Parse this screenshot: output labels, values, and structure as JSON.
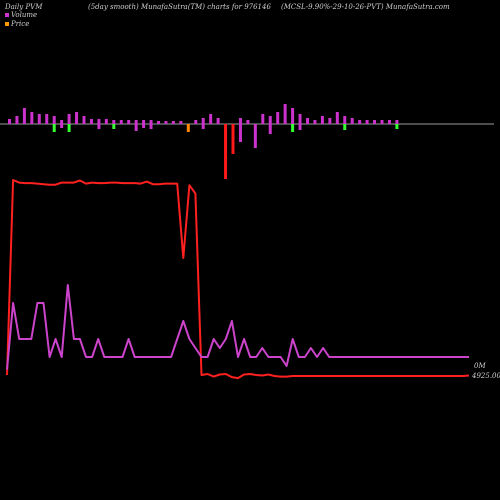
{
  "header": {
    "left": "Daily PVM",
    "mid": "(5day smooth) MunafaSutra(TM) charts for 976146",
    "right": "(MCSL-9.90%-29-10-26-PVT) MunafaSutra.com"
  },
  "legend": [
    {
      "label": "Volume",
      "color": "#cc33cc"
    },
    {
      "label": "Price",
      "color": "#ff9900"
    }
  ],
  "colors": {
    "volume_up": "#cc33cc",
    "volume_down": "#33ff33",
    "volume_orange": "#ff8800",
    "volume_red": "#ff1a1a",
    "price_line": "#ff2020",
    "volume_line": "#cc44cc"
  },
  "chart_data": {
    "type": "line",
    "right_tick_labels": [
      "0M",
      "4925.00"
    ],
    "x": [
      1,
      2,
      3,
      4,
      5,
      6,
      7,
      8,
      9,
      10,
      11,
      12,
      13,
      14,
      15,
      16,
      17,
      18,
      19,
      20,
      21,
      22,
      23,
      24,
      25,
      26,
      27,
      28,
      29,
      30,
      31,
      32,
      33,
      34,
      35,
      36,
      37,
      38,
      39,
      40,
      41,
      42,
      43,
      44,
      45,
      46,
      47,
      48,
      49,
      50,
      51,
      52,
      53,
      54,
      55,
      56,
      57,
      58,
      59,
      60,
      61,
      62,
      63,
      64,
      65,
      66,
      67,
      68,
      69,
      70,
      71,
      72,
      73,
      74,
      75,
      76,
      77
    ],
    "series": [
      {
        "name": "Price",
        "values": [
          4925,
          5300,
          5295,
          5294,
          5294,
          5293,
          5292,
          5291,
          5291,
          5295,
          5295,
          5295,
          5299,
          5293,
          5295,
          5294,
          5294,
          5295,
          5295,
          5294,
          5294,
          5294,
          5293,
          5297,
          5292,
          5292,
          5293,
          5293,
          5293,
          5150,
          5290,
          5274,
          4925,
          4927,
          4922,
          4926,
          4927,
          4921,
          4919,
          4926,
          4927,
          4925,
          4924,
          4926,
          4923,
          4922,
          4922,
          4923,
          4923,
          4923,
          4923,
          4923,
          4923,
          4923,
          4923,
          4923,
          4923,
          4923,
          4923,
          4923,
          4923,
          4923,
          4923,
          4923,
          4923,
          4923,
          4923,
          4923,
          4923,
          4923,
          4923,
          4923,
          4923,
          4923,
          4923,
          4923,
          4924
        ]
      },
      {
        "name": "Volume",
        "values": [
          0.3,
          4.0,
          2.0,
          2.0,
          2.0,
          4.0,
          4.0,
          1.0,
          2.0,
          1.0,
          5.0,
          2.0,
          2.0,
          1.0,
          1.0,
          2.0,
          1.0,
          1.0,
          1.0,
          1.0,
          2.0,
          1.0,
          1.0,
          1.0,
          1.0,
          1.0,
          1.0,
          1.0,
          2.0,
          3.0,
          2.0,
          1.5,
          1.0,
          1.0,
          2.0,
          1.5,
          2.0,
          3.0,
          1.0,
          2.0,
          1.0,
          1.0,
          1.5,
          1.0,
          1.0,
          1.0,
          0.5,
          2.0,
          1.0,
          1.0,
          1.5,
          1.0,
          1.5,
          1.0,
          1.0,
          1.0,
          1.0,
          1.0,
          1.0,
          1.0,
          1.0,
          1.0,
          1.0,
          1.0,
          1.0,
          1.0,
          1.0,
          1.0,
          1.0,
          1.0,
          1.0,
          1.0,
          1.0,
          1.0,
          1.0,
          1.0,
          1.0
        ]
      }
    ],
    "volume_bars": [
      {
        "up": 5,
        "down": 0,
        "color": "up"
      },
      {
        "up": 8,
        "down": 0,
        "color": "up"
      },
      {
        "up": 16,
        "down": 0,
        "color": "up"
      },
      {
        "up": 12,
        "down": 0,
        "color": "up"
      },
      {
        "up": 10,
        "down": 0,
        "color": "up"
      },
      {
        "up": 10,
        "down": 0,
        "color": "up"
      },
      {
        "up": 8,
        "down": 8,
        "color": "down"
      },
      {
        "up": 4,
        "down": 4,
        "color": "up"
      },
      {
        "up": 10,
        "down": 8,
        "color": "down"
      },
      {
        "up": 12,
        "down": 0,
        "color": "up"
      },
      {
        "up": 8,
        "down": 0,
        "color": "up"
      },
      {
        "up": 5,
        "down": 0,
        "color": "up"
      },
      {
        "up": 5,
        "down": 5,
        "color": "up"
      },
      {
        "up": 5,
        "down": 0,
        "color": "up"
      },
      {
        "up": 4,
        "down": 5,
        "color": "down"
      },
      {
        "up": 4,
        "down": 0,
        "color": "up"
      },
      {
        "up": 4,
        "down": 0,
        "color": "up"
      },
      {
        "up": 4,
        "down": 7,
        "color": "up"
      },
      {
        "up": 4,
        "down": 4,
        "color": "up"
      },
      {
        "up": 4,
        "down": 5,
        "color": "up"
      },
      {
        "up": 3,
        "down": 0,
        "color": "up"
      },
      {
        "up": 3,
        "down": 0,
        "color": "up"
      },
      {
        "up": 3,
        "down": 0,
        "color": "up"
      },
      {
        "up": 3,
        "down": 0,
        "color": "up"
      },
      {
        "up": 0,
        "down": 8,
        "color": "orange"
      },
      {
        "up": 4,
        "down": 0,
        "color": "up"
      },
      {
        "up": 6,
        "down": 5,
        "color": "up"
      },
      {
        "up": 10,
        "down": 0,
        "color": "up"
      },
      {
        "up": 6,
        "down": 0,
        "color": "up"
      },
      {
        "up": 0,
        "down": 55,
        "color": "red"
      },
      {
        "up": 0,
        "down": 30,
        "color": "red"
      },
      {
        "up": 6,
        "down": 18,
        "color": "up"
      },
      {
        "up": 4,
        "down": 0,
        "color": "up"
      },
      {
        "up": 0,
        "down": 24,
        "color": "up"
      },
      {
        "up": 10,
        "down": 0,
        "color": "up"
      },
      {
        "up": 8,
        "down": 10,
        "color": "up"
      },
      {
        "up": 12,
        "down": 0,
        "color": "up"
      },
      {
        "up": 20,
        "down": 0,
        "color": "up"
      },
      {
        "up": 16,
        "down": 8,
        "color": "down"
      },
      {
        "up": 10,
        "down": 6,
        "color": "up"
      },
      {
        "up": 6,
        "down": 0,
        "color": "up"
      },
      {
        "up": 4,
        "down": 0,
        "color": "up"
      },
      {
        "up": 8,
        "down": 0,
        "color": "up"
      },
      {
        "up": 6,
        "down": 0,
        "color": "up"
      },
      {
        "up": 12,
        "down": 0,
        "color": "up"
      },
      {
        "up": 8,
        "down": 6,
        "color": "down"
      },
      {
        "up": 6,
        "down": 0,
        "color": "up"
      },
      {
        "up": 4,
        "down": 0,
        "color": "up"
      },
      {
        "up": 4,
        "down": 0,
        "color": "up"
      },
      {
        "up": 4,
        "down": 0,
        "color": "up"
      },
      {
        "up": 4,
        "down": 0,
        "color": "up"
      },
      {
        "up": 4,
        "down": 0,
        "color": "up"
      },
      {
        "up": 4,
        "down": 5,
        "color": "down"
      }
    ]
  }
}
